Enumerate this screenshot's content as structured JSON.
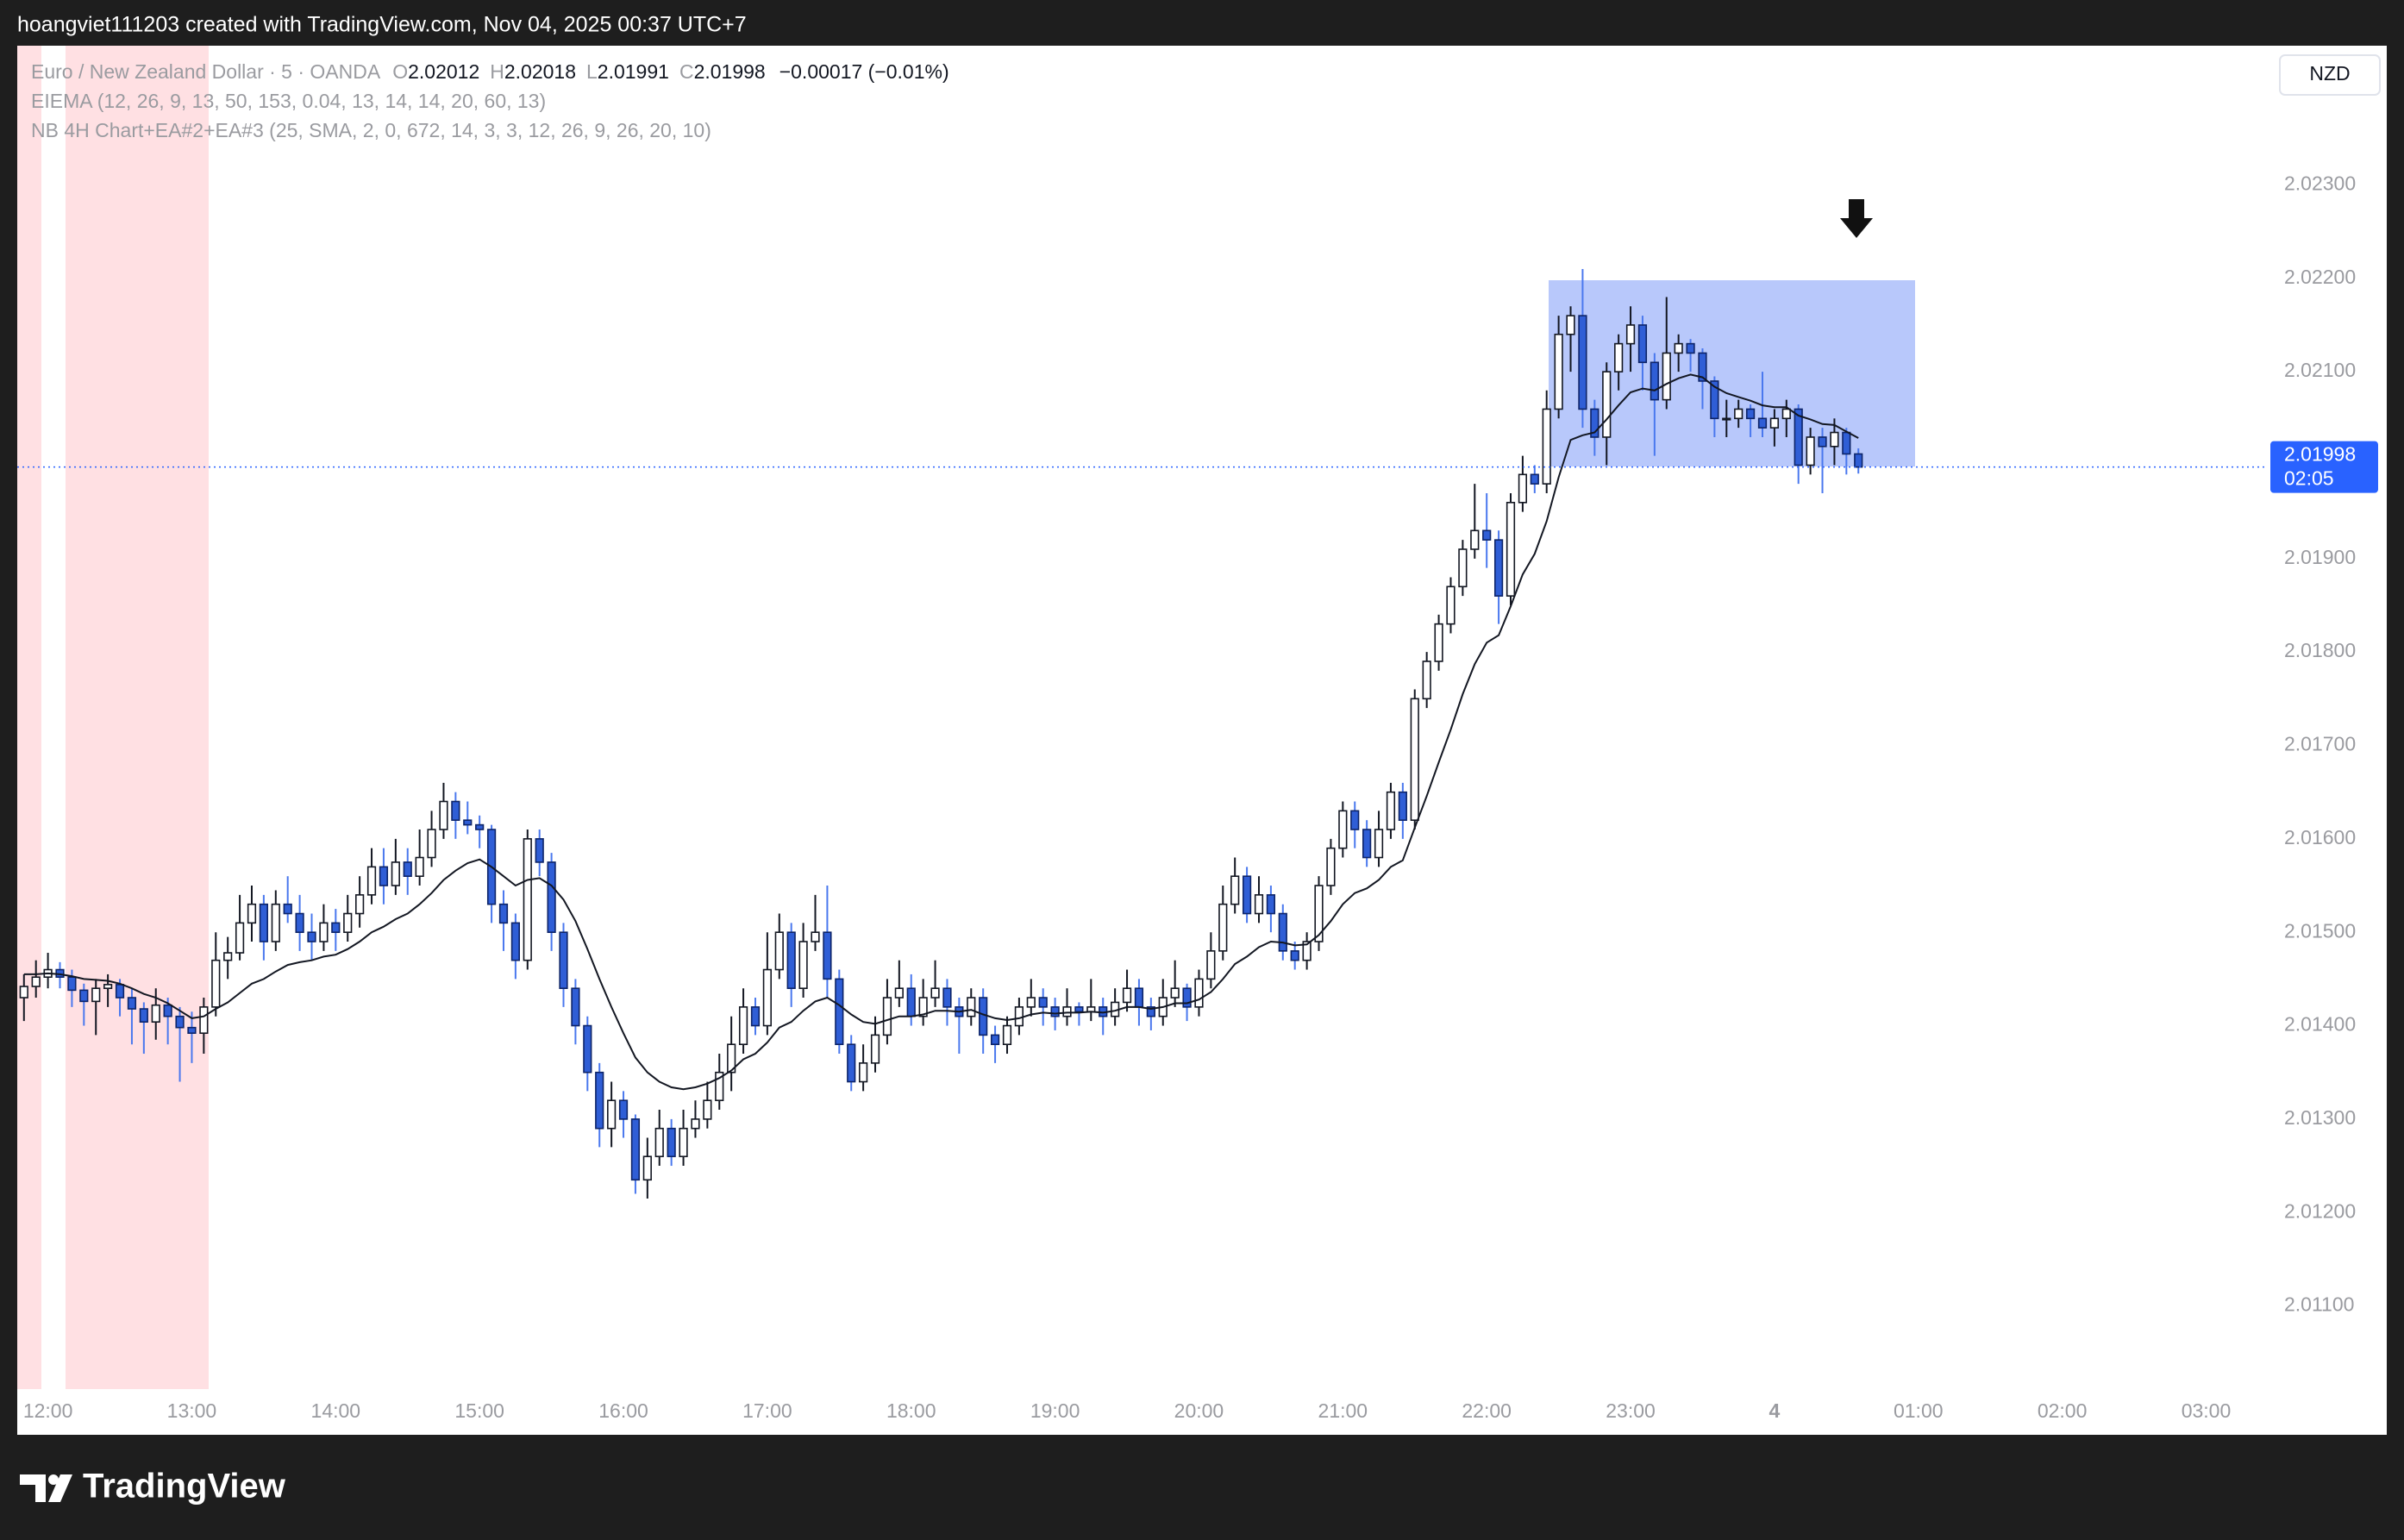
{
  "chart_data": {
    "type": "candlestick",
    "xlim": [
      -0.56,
      187
    ],
    "ylim": [
      2.01011,
      2.02449
    ],
    "grid": false,
    "up_color": "#ffffff",
    "down_color": "#2f5ed6",
    "ema_color": "#131722",
    "price_line_color": "#2962ff",
    "xticks": [
      {
        "value": 2,
        "label": "12:00"
      },
      {
        "value": 14,
        "label": "13:00"
      },
      {
        "value": 26,
        "label": "14:00"
      },
      {
        "value": 38,
        "label": "15:00"
      },
      {
        "value": 50,
        "label": "16:00"
      },
      {
        "value": 62,
        "label": "17:00"
      },
      {
        "value": 74,
        "label": "18:00"
      },
      {
        "value": 86,
        "label": "19:00"
      },
      {
        "value": 98,
        "label": "20:00"
      },
      {
        "value": 110,
        "label": "21:00"
      },
      {
        "value": 122,
        "label": "22:00"
      },
      {
        "value": 134,
        "label": "23:00"
      },
      {
        "value": 146,
        "label": "4"
      },
      {
        "value": 158,
        "label": "01:00"
      },
      {
        "value": 170,
        "label": "02:00"
      },
      {
        "value": 182,
        "label": "03:00"
      }
    ],
    "yticks": [
      {
        "value": 2.011,
        "label": "2.01100"
      },
      {
        "value": 2.012,
        "label": "2.01200"
      },
      {
        "value": 2.013,
        "label": "2.01300"
      },
      {
        "value": 2.014,
        "label": "2.01400"
      },
      {
        "value": 2.015,
        "label": "2.01500"
      },
      {
        "value": 2.016,
        "label": "2.01600"
      },
      {
        "value": 2.017,
        "label": "2.01700"
      },
      {
        "value": 2.018,
        "label": "2.01800"
      },
      {
        "value": 2.019,
        "label": "2.01900"
      },
      {
        "value": 2.02,
        "label": "2.02000"
      },
      {
        "value": 2.021,
        "label": "2.02100"
      },
      {
        "value": 2.022,
        "label": "2.02200"
      },
      {
        "value": 2.023,
        "label": "2.02300"
      }
    ],
    "ohlc": [
      [
        2.0143,
        2.01455,
        2.01405,
        2.01442
      ],
      [
        2.01442,
        2.0147,
        2.0143,
        2.01452
      ],
      [
        2.01452,
        2.01478,
        2.0144,
        2.0146
      ],
      [
        2.0146,
        2.01468,
        2.0144,
        2.01452
      ],
      [
        2.01452,
        2.0146,
        2.0142,
        2.01438
      ],
      [
        2.01438,
        2.01445,
        2.014,
        2.01426
      ],
      [
        2.01426,
        2.0145,
        2.0139,
        2.0144
      ],
      [
        2.0144,
        2.01455,
        2.0142,
        2.01444
      ],
      [
        2.01444,
        2.0145,
        2.0141,
        2.0143
      ],
      [
        2.0143,
        2.0144,
        2.0138,
        2.01418
      ],
      [
        2.01418,
        2.01425,
        2.0137,
        2.01404
      ],
      [
        2.01404,
        2.0144,
        2.01385,
        2.01422
      ],
      [
        2.01422,
        2.0143,
        2.0138,
        2.0141
      ],
      [
        2.0141,
        2.0142,
        2.0134,
        2.01398
      ],
      [
        2.01398,
        2.01415,
        2.0136,
        2.01392
      ],
      [
        2.01392,
        2.0143,
        2.0137,
        2.0142
      ],
      [
        2.0142,
        2.015,
        2.0141,
        2.0147
      ],
      [
        2.0147,
        2.01495,
        2.0145,
        2.01478
      ],
      [
        2.01478,
        2.0154,
        2.0147,
        2.0151
      ],
      [
        2.0151,
        2.0155,
        2.0149,
        2.0153
      ],
      [
        2.0153,
        2.0154,
        2.0147,
        2.0149
      ],
      [
        2.0149,
        2.01545,
        2.0148,
        2.0153
      ],
      [
        2.0153,
        2.0156,
        2.0151,
        2.0152
      ],
      [
        2.0152,
        2.0154,
        2.0148,
        2.015
      ],
      [
        2.015,
        2.0152,
        2.0147,
        2.0149
      ],
      [
        2.0149,
        2.0153,
        2.0148,
        2.0151
      ],
      [
        2.0151,
        2.01525,
        2.0148,
        2.015
      ],
      [
        2.015,
        2.0154,
        2.0149,
        2.0152
      ],
      [
        2.0152,
        2.0156,
        2.01505,
        2.0154
      ],
      [
        2.0154,
        2.0159,
        2.0153,
        2.0157
      ],
      [
        2.0157,
        2.0159,
        2.0153,
        2.0155
      ],
      [
        2.0155,
        2.016,
        2.0154,
        2.01575
      ],
      [
        2.01575,
        2.0159,
        2.0154,
        2.0156
      ],
      [
        2.0156,
        2.0161,
        2.0155,
        2.0158
      ],
      [
        2.0158,
        2.0163,
        2.0157,
        2.0161
      ],
      [
        2.0161,
        2.0166,
        2.016,
        2.0164
      ],
      [
        2.0164,
        2.0165,
        2.016,
        2.0162
      ],
      [
        2.0162,
        2.0164,
        2.01605,
        2.01615
      ],
      [
        2.01615,
        2.01625,
        2.0159,
        2.0161
      ],
      [
        2.0161,
        2.01615,
        2.0151,
        2.0153
      ],
      [
        2.0153,
        2.01545,
        2.0148,
        2.0151
      ],
      [
        2.0151,
        2.0152,
        2.0145,
        2.0147
      ],
      [
        2.0147,
        2.0161,
        2.0146,
        2.016
      ],
      [
        2.016,
        2.0161,
        2.0156,
        2.01575
      ],
      [
        2.01575,
        2.01585,
        2.0148,
        2.015
      ],
      [
        2.015,
        2.0151,
        2.0142,
        2.0144
      ],
      [
        2.0144,
        2.0145,
        2.0138,
        2.014
      ],
      [
        2.014,
        2.0141,
        2.0133,
        2.0135
      ],
      [
        2.0135,
        2.0136,
        2.0127,
        2.0129
      ],
      [
        2.0129,
        2.0134,
        2.0127,
        2.0132
      ],
      [
        2.0132,
        2.0133,
        2.0128,
        2.013
      ],
      [
        2.013,
        2.01305,
        2.0122,
        2.01235
      ],
      [
        2.01235,
        2.0128,
        2.01215,
        2.0126
      ],
      [
        2.0126,
        2.0131,
        2.0125,
        2.0129
      ],
      [
        2.0129,
        2.013,
        2.0125,
        2.0126
      ],
      [
        2.0126,
        2.0131,
        2.0125,
        2.0129
      ],
      [
        2.0129,
        2.0132,
        2.0128,
        2.013
      ],
      [
        2.013,
        2.0134,
        2.0129,
        2.0132
      ],
      [
        2.0132,
        2.0137,
        2.0131,
        2.0135
      ],
      [
        2.0135,
        2.0141,
        2.0133,
        2.0138
      ],
      [
        2.0138,
        2.0144,
        2.0137,
        2.0142
      ],
      [
        2.0142,
        2.0143,
        2.0139,
        2.014
      ],
      [
        2.014,
        2.015,
        2.0139,
        2.0146
      ],
      [
        2.0146,
        2.0152,
        2.0145,
        2.015
      ],
      [
        2.015,
        2.0151,
        2.0142,
        2.0144
      ],
      [
        2.0144,
        2.0151,
        2.0143,
        2.0149
      ],
      [
        2.0149,
        2.0154,
        2.0148,
        2.015
      ],
      [
        2.015,
        2.0155,
        2.0143,
        2.0145
      ],
      [
        2.0145,
        2.0146,
        2.0137,
        2.0138
      ],
      [
        2.0138,
        2.0139,
        2.0133,
        2.0134
      ],
      [
        2.0134,
        2.0138,
        2.0133,
        2.0136
      ],
      [
        2.0136,
        2.0141,
        2.0135,
        2.0139
      ],
      [
        2.0139,
        2.0145,
        2.0138,
        2.0143
      ],
      [
        2.0143,
        2.0147,
        2.0142,
        2.0144
      ],
      [
        2.0144,
        2.01455,
        2.014,
        2.0141
      ],
      [
        2.0141,
        2.0145,
        2.014,
        2.0143
      ],
      [
        2.0143,
        2.0147,
        2.0142,
        2.0144
      ],
      [
        2.0144,
        2.0145,
        2.014,
        2.0142
      ],
      [
        2.0142,
        2.0143,
        2.0137,
        2.0141
      ],
      [
        2.0141,
        2.0144,
        2.014,
        2.0143
      ],
      [
        2.0143,
        2.0144,
        2.0137,
        2.0139
      ],
      [
        2.0139,
        2.014,
        2.0136,
        2.0138
      ],
      [
        2.0138,
        2.0141,
        2.0137,
        2.014
      ],
      [
        2.014,
        2.0143,
        2.0139,
        2.0142
      ],
      [
        2.0142,
        2.0145,
        2.0141,
        2.0143
      ],
      [
        2.0143,
        2.0144,
        2.014,
        2.0142
      ],
      [
        2.0142,
        2.0143,
        2.01395,
        2.0141
      ],
      [
        2.0141,
        2.0144,
        2.014,
        2.0142
      ],
      [
        2.0142,
        2.01425,
        2.014,
        2.01415
      ],
      [
        2.01415,
        2.0145,
        2.01405,
        2.0142
      ],
      [
        2.0142,
        2.0143,
        2.0139,
        2.0141
      ],
      [
        2.0141,
        2.0144,
        2.014,
        2.01425
      ],
      [
        2.01425,
        2.0146,
        2.01415,
        2.0144
      ],
      [
        2.0144,
        2.0145,
        2.014,
        2.0142
      ],
      [
        2.0142,
        2.0143,
        2.01395,
        2.0141
      ],
      [
        2.0141,
        2.0145,
        2.014,
        2.0143
      ],
      [
        2.0143,
        2.0147,
        2.0142,
        2.0144
      ],
      [
        2.0144,
        2.01445,
        2.01405,
        2.0142
      ],
      [
        2.0142,
        2.0146,
        2.0141,
        2.0145
      ],
      [
        2.0145,
        2.015,
        2.0144,
        2.0148
      ],
      [
        2.0148,
        2.0155,
        2.0147,
        2.0153
      ],
      [
        2.0153,
        2.0158,
        2.0152,
        2.0156
      ],
      [
        2.0156,
        2.0157,
        2.0151,
        2.0152
      ],
      [
        2.0152,
        2.0156,
        2.0151,
        2.0154
      ],
      [
        2.0154,
        2.0155,
        2.015,
        2.0152
      ],
      [
        2.0152,
        2.0153,
        2.0147,
        2.0148
      ],
      [
        2.0148,
        2.0149,
        2.0146,
        2.0147
      ],
      [
        2.0147,
        2.015,
        2.0146,
        2.0149
      ],
      [
        2.0149,
        2.0156,
        2.0148,
        2.0155
      ],
      [
        2.0155,
        2.016,
        2.0154,
        2.0159
      ],
      [
        2.0159,
        2.0164,
        2.0158,
        2.0163
      ],
      [
        2.0163,
        2.0164,
        2.0159,
        2.0161
      ],
      [
        2.0161,
        2.0162,
        2.0157,
        2.0158
      ],
      [
        2.0158,
        2.0163,
        2.0157,
        2.0161
      ],
      [
        2.0161,
        2.0166,
        2.016,
        2.0165
      ],
      [
        2.0165,
        2.0166,
        2.016,
        2.0162
      ],
      [
        2.0162,
        2.0176,
        2.0161,
        2.0175
      ],
      [
        2.0175,
        2.018,
        2.0174,
        2.0179
      ],
      [
        2.0179,
        2.0184,
        2.0178,
        2.0183
      ],
      [
        2.0183,
        2.0188,
        2.0182,
        2.0187
      ],
      [
        2.0187,
        2.0192,
        2.0186,
        2.0191
      ],
      [
        2.0191,
        2.0198,
        2.019,
        2.0193
      ],
      [
        2.0193,
        2.0197,
        2.0189,
        2.0192
      ],
      [
        2.0192,
        2.0193,
        2.0183,
        2.0186
      ],
      [
        2.0186,
        2.0197,
        2.0185,
        2.0196
      ],
      [
        2.0196,
        2.0201,
        2.0195,
        2.0199
      ],
      [
        2.0199,
        2.02,
        2.0197,
        2.0198
      ],
      [
        2.0198,
        2.0208,
        2.0197,
        2.0206
      ],
      [
        2.0206,
        2.0216,
        2.0205,
        2.0214
      ],
      [
        2.0214,
        2.0217,
        2.021,
        2.0216
      ],
      [
        2.0216,
        2.0221,
        2.0204,
        2.0206
      ],
      [
        2.0206,
        2.0207,
        2.0201,
        2.0203
      ],
      [
        2.0203,
        2.0211,
        2.02,
        2.021
      ],
      [
        2.021,
        2.0214,
        2.0208,
        2.0213
      ],
      [
        2.0213,
        2.0217,
        2.021,
        2.0215
      ],
      [
        2.0215,
        2.0216,
        2.0208,
        2.0211
      ],
      [
        2.0211,
        2.0212,
        2.0201,
        2.0207
      ],
      [
        2.0207,
        2.0218,
        2.0206,
        2.0212
      ],
      [
        2.0212,
        2.0214,
        2.021,
        2.0213
      ],
      [
        2.0213,
        2.02135,
        2.021,
        2.0212
      ],
      [
        2.0212,
        2.02125,
        2.0206,
        2.0209
      ],
      [
        2.0209,
        2.02095,
        2.0203,
        2.0205
      ],
      [
        2.0205,
        2.0207,
        2.0203,
        2.0205
      ],
      [
        2.0205,
        2.0207,
        2.0204,
        2.0206
      ],
      [
        2.0206,
        2.02065,
        2.0203,
        2.0205
      ],
      [
        2.0205,
        2.021,
        2.0203,
        2.0204
      ],
      [
        2.0204,
        2.0206,
        2.0202,
        2.0205
      ],
      [
        2.0205,
        2.0207,
        2.0203,
        2.0206
      ],
      [
        2.0206,
        2.02065,
        2.0198,
        2.02
      ],
      [
        2.02,
        2.0204,
        2.0199,
        2.0203
      ],
      [
        2.0203,
        2.0204,
        2.0197,
        2.0202
      ],
      [
        2.0202,
        2.0205,
        2.02,
        2.02035
      ],
      [
        2.02035,
        2.0204,
        2.0199,
        2.02012
      ],
      [
        2.02012,
        2.02018,
        2.01991,
        2.01998
      ]
    ],
    "ema": [
      2.01455,
      2.01455,
      2.01456,
      2.01455,
      2.01453,
      2.0145,
      2.01449,
      2.01448,
      2.01445,
      2.0144,
      2.01434,
      2.0143,
      2.01424,
      2.01416,
      2.01408,
      2.0141,
      2.01418,
      2.01425,
      2.01435,
      2.01445,
      2.0145,
      2.01458,
      2.01465,
      2.01468,
      2.0147,
      2.01474,
      2.01476,
      2.01482,
      2.0149,
      2.015,
      2.01506,
      2.01514,
      2.0152,
      2.0153,
      2.01542,
      2.01556,
      2.01566,
      2.01574,
      2.01578,
      2.0157,
      2.0156,
      2.0155,
      2.01556,
      2.01558,
      2.0155,
      2.01535,
      2.01512,
      2.01482,
      2.0145,
      2.0142,
      2.01392,
      2.01366,
      2.0135,
      2.0134,
      2.01334,
      2.01332,
      2.01334,
      2.01338,
      2.01344,
      2.01352,
      2.01364,
      2.0137,
      2.01382,
      2.01398,
      2.01404,
      2.01416,
      2.01426,
      2.0143,
      2.01422,
      2.01412,
      2.01404,
      2.01402,
      2.01406,
      2.0141,
      2.0141,
      2.01412,
      2.01416,
      2.01416,
      2.01415,
      2.01417,
      2.01412,
      2.01408,
      2.01406,
      2.01408,
      2.01412,
      2.01414,
      2.01413,
      2.01414,
      2.01414,
      2.01415,
      2.01414,
      2.01416,
      2.0142,
      2.0142,
      2.01418,
      2.0142,
      2.01424,
      2.01424,
      2.01428,
      2.01436,
      2.0145,
      2.01466,
      2.01474,
      2.01484,
      2.0149,
      2.01489,
      2.01486,
      2.01487,
      2.01497,
      2.01512,
      2.0153,
      2.01542,
      2.01547,
      2.01556,
      2.0157,
      2.01577,
      2.01612,
      2.01646,
      2.01682,
      2.01717,
      2.01755,
      2.01787,
      2.0181,
      2.01818,
      2.01849,
      2.01883,
      2.01905,
      2.0194,
      2.01987,
      2.02027,
      2.02032,
      2.02035,
      2.02049,
      2.02064,
      2.02078,
      2.02082,
      2.0208,
      2.02087,
      2.02093,
      2.02097,
      2.02094,
      2.02084,
      2.02077,
      2.02073,
      2.02069,
      2.02064,
      2.02062,
      2.02062,
      2.02053,
      2.02049,
      2.02044,
      2.02043,
      2.02036,
      2.02029
    ]
  },
  "ui": {
    "top_bar": "hoangviet111203 created with TradingView.com, Nov 04, 2025 00:37 UTC+7",
    "header": {
      "symbol": "Euro / New Zealand Dollar · 5 · OANDA",
      "ohlc_labels": [
        "O",
        "H",
        "L",
        "C"
      ],
      "change": "−0.00017 (−0.01%)",
      "indicators": [
        "EIEMA (12, 26, 9, 13, 50, 153, 0.04, 13, 14, 14, 20, 60, 13)",
        "NB 4H Chart+EA#2+EA#3 (25, SMA, 2, 0, 672, 14, 3, 3, 12, 26, 9, 26, 20, 10)"
      ]
    },
    "currency": "NZD",
    "countdown": "02:05",
    "brand": "TradingView"
  }
}
